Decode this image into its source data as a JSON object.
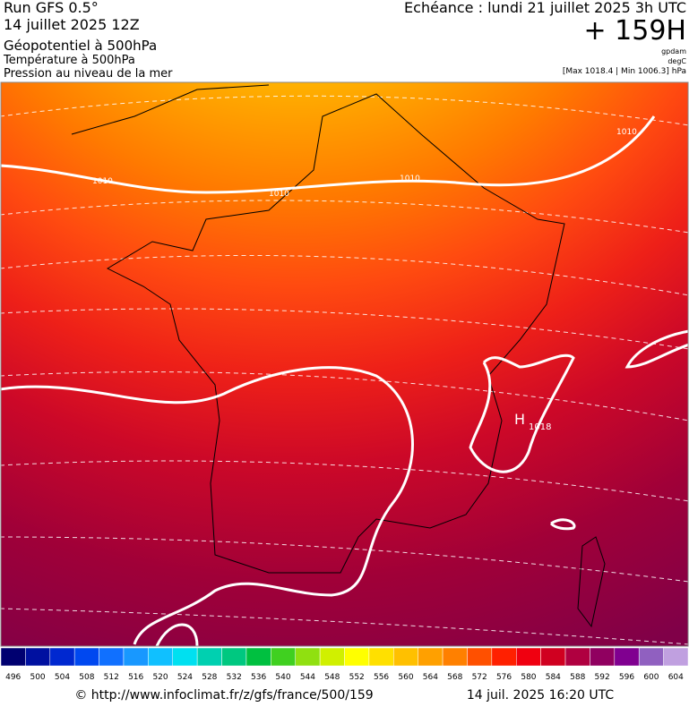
{
  "header": {
    "run": "Run GFS 0.5°",
    "date": "14 juillet 2025 12Z",
    "geopotential": "Géopotentiel à 500hPa",
    "temperature": "Température à 500hPa",
    "pressure": "Pression au niveau de la mer",
    "forecast": "Echéance : lundi 21 juillet 2025 3h UTC",
    "lead": "+ 159H",
    "unit_geo": "gpdam",
    "unit_temp": "degC",
    "range": "[Max 1018.4 | Min 1006.3] hPa"
  },
  "map": {
    "isobar_labels": [
      "1010",
      "1010",
      "1010",
      "1010"
    ],
    "high": "H",
    "high_value": "1018"
  },
  "colorbar": {
    "labels": [
      496,
      500,
      504,
      508,
      512,
      516,
      520,
      524,
      528,
      532,
      536,
      540,
      544,
      548,
      552,
      556,
      560,
      564,
      568,
      572,
      576,
      580,
      584,
      588,
      592,
      596,
      600,
      604
    ],
    "colors": [
      "#000070",
      "#0010a0",
      "#0028d0",
      "#0048f0",
      "#1070ff",
      "#1898ff",
      "#10c0ff",
      "#00e0f0",
      "#00d0b0",
      "#00c880",
      "#00c040",
      "#40d020",
      "#90e010",
      "#d0f000",
      "#ffff00",
      "#ffe000",
      "#ffc000",
      "#ffa000",
      "#ff8000",
      "#ff5000",
      "#ff2000",
      "#f00010",
      "#d00020",
      "#b00040",
      "#900060",
      "#800090",
      "#9060c0",
      "#c0a0e0"
    ]
  },
  "footer": {
    "url": "© http://www.infoclimat.fr/z/gfs/france/500/159",
    "timestamp": "14 juil. 2025 16:20 UTC"
  }
}
